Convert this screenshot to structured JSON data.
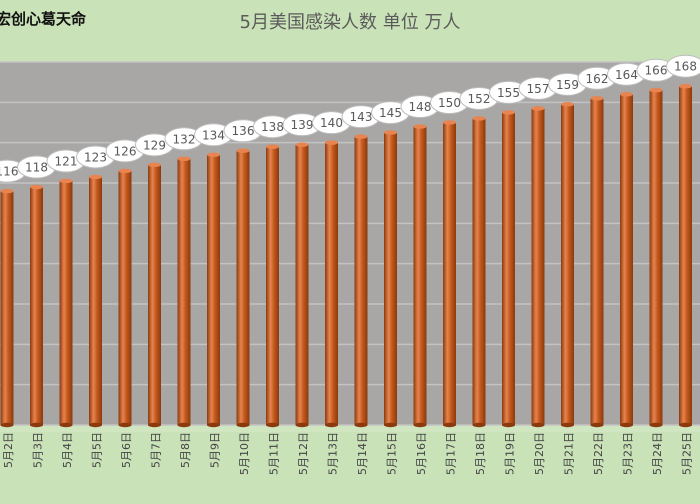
{
  "watermark": "宏创心葛天命",
  "chart_data": {
    "type": "bar",
    "title": "5月美国感染人数 单位 万人",
    "categories": [
      "5月2日",
      "5月3日",
      "5月4日",
      "5月5日",
      "5月6日",
      "5月7日",
      "5月8日",
      "5月9日",
      "5月10日",
      "5月11日",
      "5月12日",
      "5月13日",
      "5月14日",
      "5月15日",
      "5月16日",
      "5月17日",
      "5月18日",
      "5月19日",
      "5月20日",
      "5月21日",
      "5月22日",
      "5月23日",
      "5月24日",
      "5月25日"
    ],
    "values": [
      116,
      118,
      121,
      123,
      126,
      129,
      132,
      134,
      136,
      138,
      139,
      140,
      143,
      145,
      148,
      150,
      152,
      155,
      157,
      159,
      162,
      164,
      166,
      168
    ],
    "ylim": [
      0,
      180
    ],
    "grid": true,
    "colors": {
      "bar": "#c55a1e",
      "bar_dark": "#8a3a0c",
      "bar_light": "#e88450",
      "plot_bg": "#a9a6a6",
      "grid": "#c4c2c2",
      "bubble_fill": "#ffffff",
      "bubble_stroke": "#bdbdbd",
      "label_text": "#595959"
    }
  }
}
